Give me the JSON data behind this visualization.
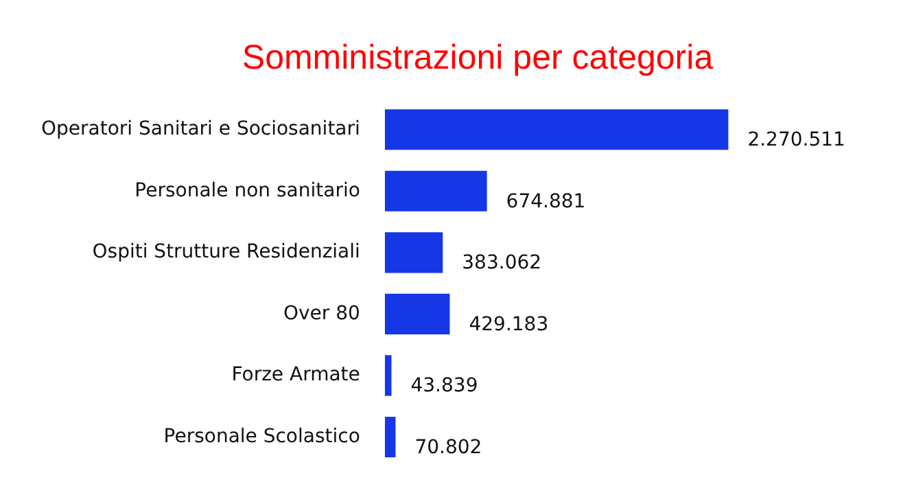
{
  "chart_data": {
    "type": "bar",
    "orientation": "horizontal",
    "title": "Somministrazioni per categoria",
    "categories": [
      "Operatori Sanitari e Sociosanitari",
      "Personale non sanitario",
      "Ospiti Strutture Residenziali",
      "Over 80",
      "Forze Armate",
      "Personale Scolastico"
    ],
    "values": [
      2270511,
      674881,
      383062,
      429183,
      43839,
      70802
    ],
    "value_labels": [
      "2.270.511",
      "674.881",
      "383.062",
      "429.183",
      "43.839",
      "70.802"
    ],
    "color": "#1637e6",
    "grid": false,
    "legend": false,
    "tick_labels": "y"
  }
}
